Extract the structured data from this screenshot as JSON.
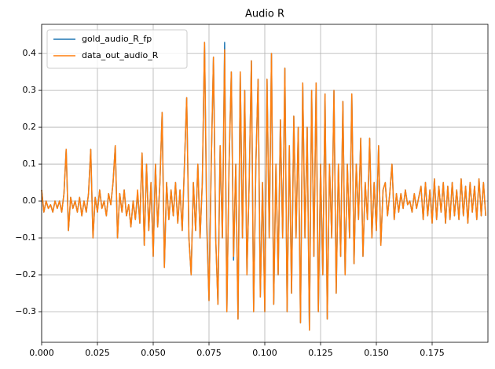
{
  "chart_data": {
    "type": "line",
    "title": "Audio R",
    "x": [
      0,
      0.001,
      0.002,
      0.003,
      0.004,
      0.005,
      0.006,
      0.007,
      0.008,
      0.009,
      0.01,
      0.011,
      0.012,
      0.013,
      0.014,
      0.015,
      0.016,
      0.017,
      0.018,
      0.019,
      0.02,
      0.021,
      0.022,
      0.023,
      0.024,
      0.025,
      0.026,
      0.027,
      0.028,
      0.029,
      0.03,
      0.031,
      0.032,
      0.033,
      0.034,
      0.035,
      0.036,
      0.037,
      0.038,
      0.039,
      0.04,
      0.041,
      0.042,
      0.043,
      0.044,
      0.045,
      0.046,
      0.047,
      0.048,
      0.049,
      0.05,
      0.051,
      0.052,
      0.053,
      0.054,
      0.055,
      0.056,
      0.057,
      0.058,
      0.059,
      0.06,
      0.061,
      0.062,
      0.063,
      0.064,
      0.065,
      0.066,
      0.067,
      0.068,
      0.069,
      0.07,
      0.071,
      0.072,
      0.073,
      0.074,
      0.075,
      0.076,
      0.077,
      0.078,
      0.079,
      0.08,
      0.081,
      0.082,
      0.083,
      0.084,
      0.085,
      0.086,
      0.087,
      0.088,
      0.089,
      0.09,
      0.091,
      0.092,
      0.093,
      0.094,
      0.095,
      0.096,
      0.097,
      0.098,
      0.099,
      0.1,
      0.101,
      0.102,
      0.103,
      0.104,
      0.105,
      0.106,
      0.107,
      0.108,
      0.109,
      0.11,
      0.111,
      0.112,
      0.113,
      0.114,
      0.115,
      0.116,
      0.117,
      0.118,
      0.119,
      0.12,
      0.121,
      0.122,
      0.123,
      0.124,
      0.125,
      0.126,
      0.127,
      0.128,
      0.129,
      0.13,
      0.131,
      0.132,
      0.133,
      0.134,
      0.135,
      0.136,
      0.137,
      0.138,
      0.139,
      0.14,
      0.141,
      0.142,
      0.143,
      0.144,
      0.145,
      0.146,
      0.147,
      0.148,
      0.149,
      0.15,
      0.151,
      0.152,
      0.153,
      0.154,
      0.155,
      0.156,
      0.157,
      0.158,
      0.159,
      0.16,
      0.161,
      0.162,
      0.163,
      0.164,
      0.165,
      0.166,
      0.167,
      0.168,
      0.169,
      0.17,
      0.171,
      0.172,
      0.173,
      0.174,
      0.175,
      0.176,
      0.177,
      0.178,
      0.179,
      0.18,
      0.181,
      0.182,
      0.183,
      0.184,
      0.185,
      0.186,
      0.187,
      0.188,
      0.189,
      0.19,
      0.191,
      0.192,
      0.193,
      0.194,
      0.195,
      0.196,
      0.197,
      0.198,
      0.199
    ],
    "series": [
      {
        "name": "gold_audio_R_fp",
        "color": "#1f77b4",
        "values": [
          0.03,
          -0.03,
          0.0,
          -0.02,
          -0.01,
          -0.03,
          0.0,
          -0.02,
          0.0,
          -0.03,
          0.02,
          0.14,
          -0.08,
          0.01,
          -0.02,
          0.0,
          -0.03,
          0.01,
          -0.04,
          0.0,
          -0.03,
          0.02,
          0.14,
          -0.1,
          0.01,
          -0.03,
          0.03,
          -0.02,
          0.0,
          -0.04,
          0.02,
          -0.01,
          0.05,
          0.15,
          -0.1,
          0.02,
          -0.03,
          0.03,
          -0.04,
          -0.01,
          -0.07,
          0.0,
          -0.05,
          0.02,
          -0.06,
          0.13,
          -0.12,
          0.1,
          -0.08,
          0.05,
          -0.15,
          0.1,
          -0.07,
          0.05,
          0.24,
          -0.18,
          0.05,
          -0.05,
          0.03,
          -0.04,
          0.05,
          -0.06,
          0.03,
          -0.08,
          0.1,
          0.28,
          -0.1,
          -0.2,
          0.05,
          -0.08,
          0.1,
          -0.1,
          0.05,
          0.43,
          -0.07,
          -0.27,
          0.1,
          0.39,
          -0.1,
          -0.28,
          0.15,
          -0.1,
          0.43,
          -0.3,
          0.1,
          0.35,
          -0.16,
          0.1,
          -0.32,
          0.35,
          -0.1,
          0.3,
          -0.2,
          0.05,
          0.38,
          -0.3,
          0.1,
          0.33,
          -0.26,
          0.05,
          -0.3,
          0.33,
          -0.1,
          0.4,
          -0.28,
          0.1,
          -0.2,
          0.22,
          -0.1,
          0.36,
          -0.3,
          0.15,
          -0.25,
          0.23,
          -0.1,
          0.2,
          -0.33,
          0.32,
          -0.1,
          0.2,
          -0.35,
          0.3,
          -0.15,
          0.32,
          -0.3,
          0.1,
          -0.2,
          0.29,
          -0.32,
          0.1,
          -0.1,
          0.3,
          -0.25,
          0.1,
          -0.15,
          0.27,
          -0.2,
          0.1,
          -0.1,
          0.29,
          -0.17,
          0.1,
          -0.05,
          0.17,
          -0.15,
          0.05,
          -0.05,
          0.17,
          -0.1,
          0.05,
          -0.08,
          0.15,
          -0.12,
          0.03,
          0.05,
          -0.04,
          0.02,
          0.1,
          -0.05,
          0.02,
          -0.03,
          0.02,
          -0.02,
          0.03,
          -0.01,
          0.0,
          -0.03,
          0.02,
          -0.02,
          0.01,
          0.04,
          -0.05,
          0.05,
          -0.04,
          0.03,
          -0.06,
          0.06,
          -0.05,
          0.04,
          -0.03,
          0.05,
          -0.06,
          0.04,
          -0.05,
          0.05,
          -0.04,
          0.03,
          -0.05,
          0.06,
          -0.04,
          0.04,
          -0.06,
          0.05,
          -0.03,
          0.04,
          -0.05,
          0.06,
          -0.04,
          0.05,
          -0.04
        ]
      },
      {
        "name": "data_out_audio_R",
        "color": "#ff7f0e",
        "values": [
          0.03,
          -0.03,
          0.0,
          -0.02,
          -0.01,
          -0.03,
          0.0,
          -0.02,
          0.0,
          -0.03,
          0.02,
          0.14,
          -0.08,
          0.01,
          -0.02,
          0.0,
          -0.03,
          0.01,
          -0.04,
          0.0,
          -0.03,
          0.02,
          0.14,
          -0.1,
          0.01,
          -0.03,
          0.03,
          -0.02,
          0.0,
          -0.04,
          0.02,
          -0.01,
          0.05,
          0.15,
          -0.1,
          0.02,
          -0.03,
          0.03,
          -0.04,
          -0.01,
          -0.07,
          0.0,
          -0.05,
          0.03,
          -0.06,
          0.13,
          -0.12,
          0.1,
          -0.08,
          0.05,
          -0.15,
          0.1,
          -0.07,
          0.05,
          0.24,
          -0.18,
          0.05,
          -0.05,
          0.03,
          -0.04,
          0.05,
          -0.06,
          0.03,
          -0.08,
          0.1,
          0.28,
          -0.1,
          -0.2,
          0.05,
          -0.08,
          0.1,
          -0.1,
          0.05,
          0.43,
          -0.05,
          -0.27,
          0.1,
          0.39,
          -0.1,
          -0.28,
          0.15,
          -0.1,
          0.41,
          -0.3,
          0.1,
          0.35,
          -0.15,
          0.1,
          -0.32,
          0.35,
          -0.1,
          0.3,
          -0.2,
          0.05,
          0.38,
          -0.3,
          0.1,
          0.33,
          -0.26,
          0.05,
          -0.3,
          0.33,
          -0.1,
          0.4,
          -0.28,
          0.1,
          -0.2,
          0.22,
          -0.1,
          0.36,
          -0.3,
          0.15,
          -0.25,
          0.23,
          -0.1,
          0.2,
          -0.33,
          0.32,
          -0.1,
          0.2,
          -0.35,
          0.3,
          -0.15,
          0.32,
          -0.3,
          0.1,
          -0.2,
          0.29,
          -0.32,
          0.1,
          -0.1,
          0.3,
          -0.25,
          0.1,
          -0.15,
          0.27,
          -0.2,
          0.1,
          -0.1,
          0.29,
          -0.17,
          0.1,
          -0.05,
          0.17,
          -0.15,
          0.05,
          -0.05,
          0.17,
          -0.1,
          0.05,
          -0.08,
          0.15,
          -0.12,
          0.03,
          0.05,
          -0.04,
          0.02,
          0.1,
          -0.05,
          0.02,
          -0.03,
          0.02,
          -0.02,
          0.03,
          -0.01,
          0.0,
          -0.03,
          0.02,
          -0.02,
          0.01,
          0.04,
          -0.05,
          0.05,
          -0.04,
          0.03,
          -0.06,
          0.06,
          -0.05,
          0.04,
          -0.03,
          0.05,
          -0.06,
          0.04,
          -0.05,
          0.05,
          -0.04,
          0.03,
          -0.05,
          0.06,
          -0.04,
          0.04,
          -0.06,
          0.05,
          -0.03,
          0.04,
          -0.05,
          0.06,
          -0.04,
          0.05,
          -0.04
        ]
      }
    ],
    "xlim": [
      0,
      0.2
    ],
    "xticks": [
      {
        "value": 0,
        "label": "0.000"
      },
      0.025,
      {
        "value": 0.05,
        "label": "0.050"
      },
      0.075,
      {
        "value": 0.1,
        "label": "0.100"
      },
      0.125,
      {
        "value": 0.15,
        "label": "0.150"
      },
      0.175
    ],
    "ylim": [
      -0.383,
      0.479
    ],
    "yticks": [
      {
        "value": -0.3,
        "label": "−0.3"
      },
      {
        "value": -0.2,
        "label": "−0.2"
      },
      {
        "value": -0.1,
        "label": "−0.1"
      },
      {
        "value": 0,
        "label": "0.0"
      },
      0.1,
      0.2,
      0.3,
      0.4
    ],
    "grid": true,
    "legend": "upper left"
  }
}
